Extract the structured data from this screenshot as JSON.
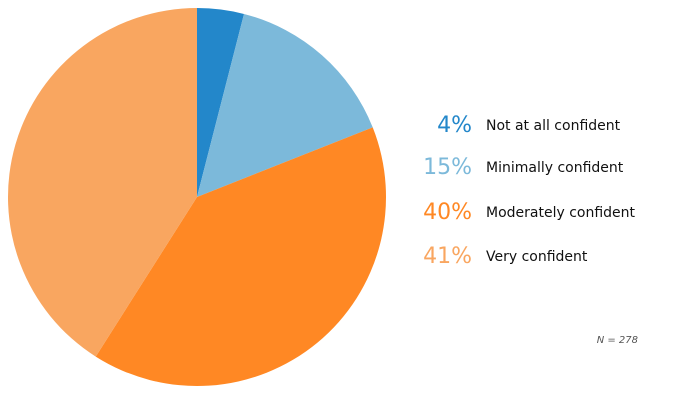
{
  "chart_data": {
    "type": "pie",
    "slices": [
      {
        "label": "Not at all confident",
        "value": 4,
        "display": "4%",
        "color": "#2387CA"
      },
      {
        "label": "Minimally confident",
        "value": 15,
        "display": "15%",
        "color": "#7CB9DA"
      },
      {
        "label": "Moderately confident",
        "value": 40,
        "display": "40%",
        "color": "#FF8824"
      },
      {
        "label": "Very confident",
        "value": 41,
        "display": "41%",
        "color": "#F9A660"
      }
    ],
    "legend_placement": "right",
    "note": "N = 278"
  }
}
